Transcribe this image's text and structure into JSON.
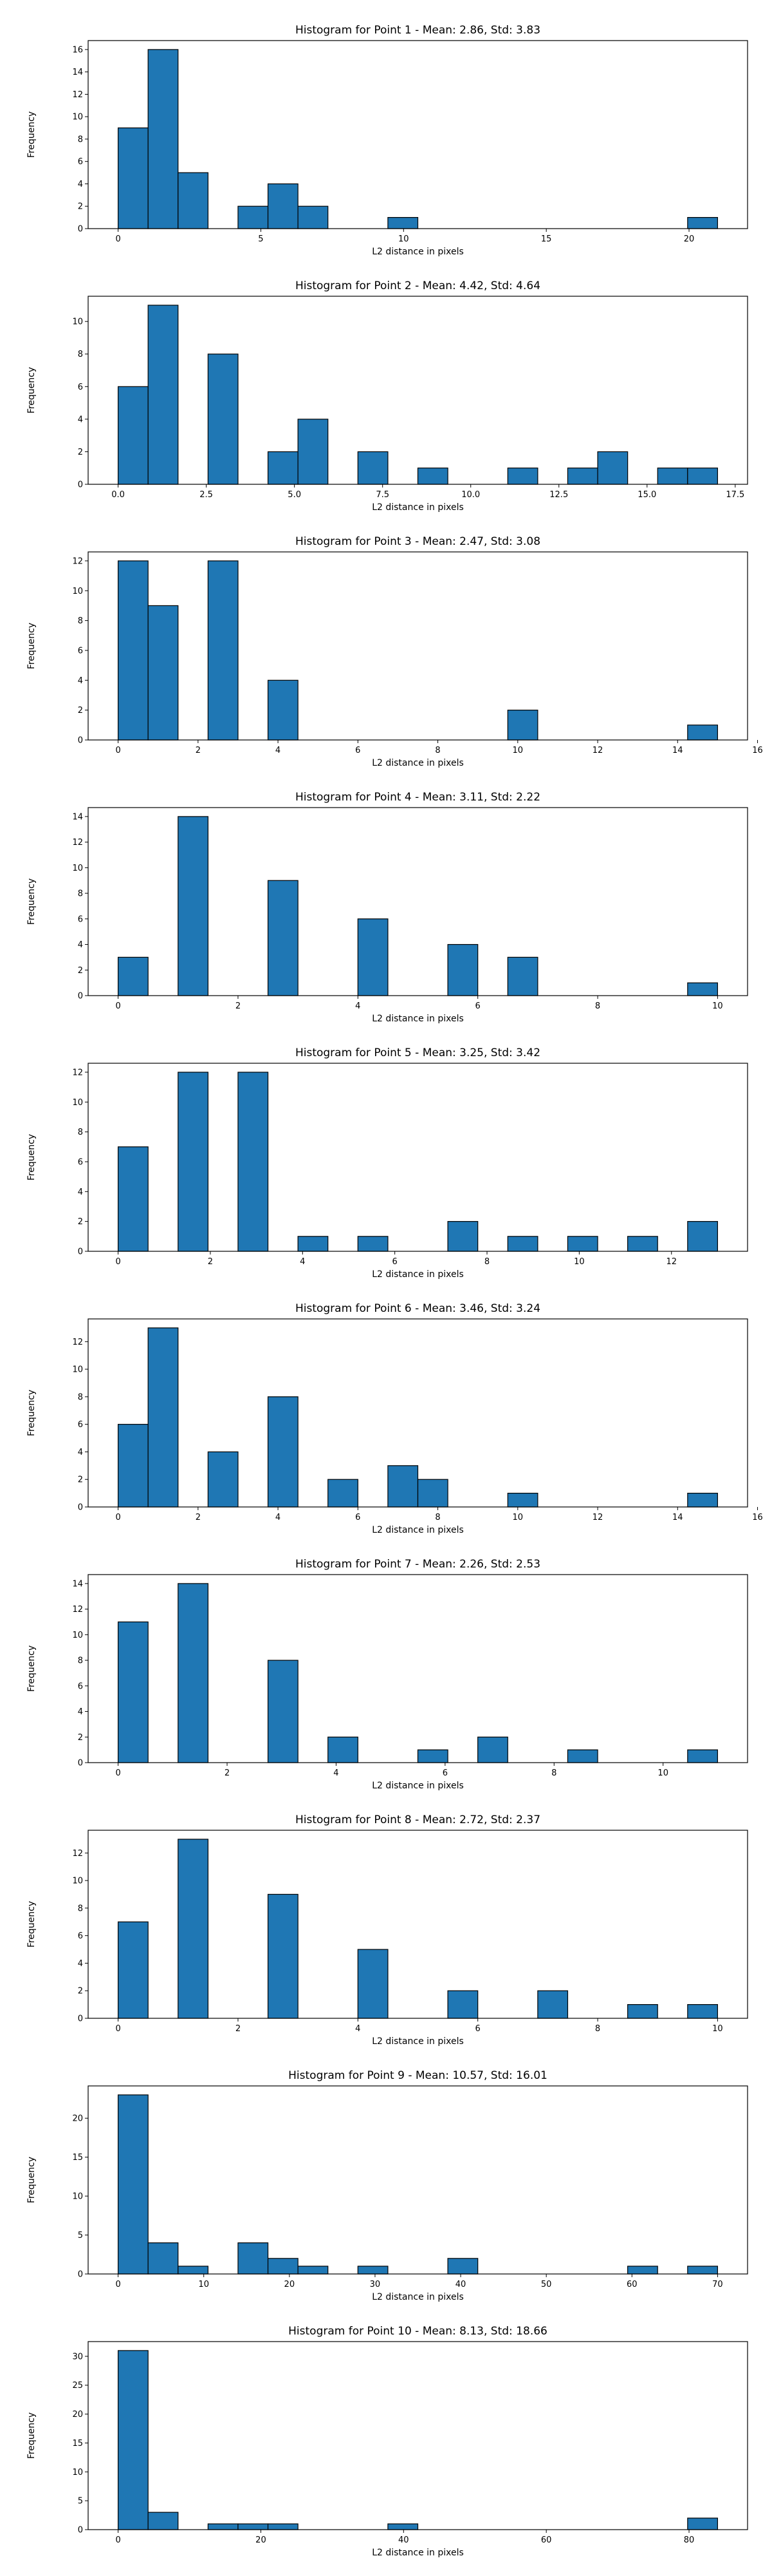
{
  "chart_data": [
    {
      "type": "bar",
      "title": "Histogram for Point 1 - Mean: 2.86, Std: 3.83",
      "xlabel": "L2 distance in pixels",
      "ylabel": "Frequency",
      "xlim": [
        -1.05,
        22.05
      ],
      "ylim": [
        0,
        16.8
      ],
      "xticks": [
        0,
        5,
        10,
        15,
        20
      ],
      "xtick_labels": [
        "0",
        "5",
        "10",
        "15",
        "20"
      ],
      "yticks": [
        0,
        2,
        4,
        6,
        8,
        10,
        12,
        14,
        16
      ],
      "bin_edges": [
        0.0,
        1.05,
        2.1,
        3.15,
        4.2,
        5.25,
        6.3,
        7.35,
        8.4,
        9.45,
        10.5,
        11.55,
        12.6,
        13.65,
        14.7,
        15.75,
        16.8,
        17.85,
        18.9,
        19.95,
        21.0
      ],
      "values": [
        9,
        16,
        5,
        0,
        2,
        4,
        2,
        0,
        0,
        1,
        0,
        0,
        0,
        0,
        0,
        0,
        0,
        0,
        0,
        1
      ],
      "bar_color": "#1f77b4",
      "edge_color": "#000000",
      "grid": false
    },
    {
      "type": "bar",
      "title": "Histogram for Point 2 - Mean: 4.42, Std: 4.64",
      "xlabel": "L2 distance in pixels",
      "ylabel": "Frequency",
      "xlim": [
        -0.85,
        17.85
      ],
      "ylim": [
        0,
        11.55
      ],
      "xticks": [
        0,
        2.5,
        5,
        7.5,
        10,
        12.5,
        15,
        17.5
      ],
      "xtick_labels": [
        "0.0",
        "2.5",
        "5.0",
        "7.5",
        "10.0",
        "12.5",
        "15.0",
        "17.5"
      ],
      "yticks": [
        0,
        2,
        4,
        6,
        8,
        10
      ],
      "bin_edges": [
        0.0,
        0.85,
        1.7,
        2.55,
        3.4,
        4.25,
        5.1,
        5.95,
        6.8,
        7.65,
        8.5,
        9.35,
        10.2,
        11.05,
        11.9,
        12.75,
        13.6,
        14.45,
        15.3,
        16.15,
        17.0
      ],
      "values": [
        6,
        11,
        0,
        8,
        0,
        2,
        4,
        0,
        2,
        0,
        1,
        0,
        0,
        1,
        0,
        1,
        2,
        0,
        1,
        1
      ],
      "bar_color": "#1f77b4",
      "edge_color": "#000000",
      "grid": false
    },
    {
      "type": "bar",
      "title": "Histogram for Point 3 - Mean: 2.47, Std: 3.08",
      "xlabel": "L2 distance in pixels",
      "ylabel": "Frequency",
      "xlim": [
        -0.75,
        15.75
      ],
      "ylim": [
        0,
        12.6
      ],
      "xticks": [
        0,
        2,
        4,
        6,
        8,
        10,
        12,
        14,
        16
      ],
      "xtick_labels": [
        "0",
        "2",
        "4",
        "6",
        "8",
        "10",
        "12",
        "14",
        "16"
      ],
      "yticks": [
        0,
        2,
        4,
        6,
        8,
        10,
        12
      ],
      "bin_edges": [
        0.0,
        0.75,
        1.5,
        2.25,
        3.0,
        3.75,
        4.5,
        5.25,
        6.0,
        6.75,
        7.5,
        8.25,
        9.0,
        9.75,
        10.5,
        11.25,
        12.0,
        12.75,
        13.5,
        14.25,
        15.0
      ],
      "values": [
        12,
        9,
        0,
        12,
        0,
        4,
        0,
        0,
        0,
        0,
        0,
        0,
        0,
        2,
        0,
        0,
        0,
        0,
        0,
        1
      ],
      "bar_color": "#1f77b4",
      "edge_color": "#000000",
      "grid": false
    },
    {
      "type": "bar",
      "title": "Histogram for Point 4 - Mean: 3.11, Std: 2.22",
      "xlabel": "L2 distance in pixels",
      "ylabel": "Frequency",
      "xlim": [
        -0.5,
        10.5
      ],
      "ylim": [
        0,
        14.7
      ],
      "xticks": [
        0,
        2,
        4,
        6,
        8,
        10
      ],
      "xtick_labels": [
        "0",
        "2",
        "4",
        "6",
        "8",
        "10"
      ],
      "yticks": [
        0,
        2,
        4,
        6,
        8,
        10,
        12,
        14
      ],
      "bin_edges": [
        0.0,
        0.5,
        1.0,
        1.5,
        2.0,
        2.5,
        3.0,
        3.5,
        4.0,
        4.5,
        5.0,
        5.5,
        6.0,
        6.5,
        7.0,
        7.5,
        8.0,
        8.5,
        9.0,
        9.5,
        10.0
      ],
      "values": [
        3,
        0,
        14,
        0,
        0,
        9,
        0,
        0,
        6,
        0,
        0,
        4,
        0,
        3,
        0,
        0,
        0,
        0,
        0,
        1
      ],
      "bar_color": "#1f77b4",
      "edge_color": "#000000",
      "grid": false
    },
    {
      "type": "bar",
      "title": "Histogram for Point 5 - Mean: 3.25, Std: 3.42",
      "xlabel": "L2 distance in pixels",
      "ylabel": "Frequency",
      "xlim": [
        -0.65,
        13.65
      ],
      "ylim": [
        0,
        12.6
      ],
      "xticks": [
        0,
        2,
        4,
        6,
        8,
        10,
        12
      ],
      "xtick_labels": [
        "0",
        "2",
        "4",
        "6",
        "8",
        "10",
        "12"
      ],
      "yticks": [
        0,
        2,
        4,
        6,
        8,
        10,
        12
      ],
      "bin_edges": [
        0.0,
        0.65,
        1.3,
        1.95,
        2.6,
        3.25,
        3.9,
        4.55,
        5.2,
        5.85,
        6.5,
        7.15,
        7.8,
        8.45,
        9.1,
        9.75,
        10.4,
        11.05,
        11.7,
        12.35,
        13.0
      ],
      "values": [
        7,
        0,
        12,
        0,
        12,
        0,
        1,
        0,
        1,
        0,
        0,
        2,
        0,
        1,
        0,
        1,
        0,
        1,
        0,
        2
      ],
      "bar_color": "#1f77b4",
      "edge_color": "#000000",
      "grid": false
    },
    {
      "type": "bar",
      "title": "Histogram for Point 6 - Mean: 3.46, Std: 3.24",
      "xlabel": "L2 distance in pixels",
      "ylabel": "Frequency",
      "xlim": [
        -0.75,
        15.75
      ],
      "ylim": [
        0,
        13.65
      ],
      "xticks": [
        0,
        2,
        4,
        6,
        8,
        10,
        12,
        14,
        16
      ],
      "xtick_labels": [
        "0",
        "2",
        "4",
        "6",
        "8",
        "10",
        "12",
        "14",
        "16"
      ],
      "yticks": [
        0,
        2,
        4,
        6,
        8,
        10,
        12
      ],
      "bin_edges": [
        0.0,
        0.75,
        1.5,
        2.25,
        3.0,
        3.75,
        4.5,
        5.25,
        6.0,
        6.75,
        7.5,
        8.25,
        9.0,
        9.75,
        10.5,
        11.25,
        12.0,
        12.75,
        13.5,
        14.25,
        15.0
      ],
      "values": [
        6,
        13,
        0,
        4,
        0,
        8,
        0,
        2,
        0,
        3,
        2,
        0,
        0,
        1,
        0,
        0,
        0,
        0,
        0,
        1
      ],
      "bar_color": "#1f77b4",
      "edge_color": "#000000",
      "grid": false
    },
    {
      "type": "bar",
      "title": "Histogram for Point 7 - Mean: 2.26, Std: 2.53",
      "xlabel": "L2 distance in pixels",
      "ylabel": "Frequency",
      "xlim": [
        -0.55,
        11.55
      ],
      "ylim": [
        0,
        14.7
      ],
      "xticks": [
        0,
        2,
        4,
        6,
        8,
        10
      ],
      "xtick_labels": [
        "0",
        "2",
        "4",
        "6",
        "8",
        "10"
      ],
      "yticks": [
        0,
        2,
        4,
        6,
        8,
        10,
        12,
        14
      ],
      "bin_edges": [
        0.0,
        0.55,
        1.1,
        1.65,
        2.2,
        2.75,
        3.3,
        3.85,
        4.4,
        4.95,
        5.5,
        6.05,
        6.6,
        7.15,
        7.7,
        8.25,
        8.8,
        9.35,
        9.9,
        10.45,
        11.0
      ],
      "values": [
        11,
        0,
        14,
        0,
        0,
        8,
        0,
        2,
        0,
        0,
        1,
        0,
        2,
        0,
        0,
        1,
        0,
        0,
        0,
        1
      ],
      "bar_color": "#1f77b4",
      "edge_color": "#000000",
      "grid": false
    },
    {
      "type": "bar",
      "title": "Histogram for Point 8 - Mean: 2.72, Std: 2.37",
      "xlabel": "L2 distance in pixels",
      "ylabel": "Frequency",
      "xlim": [
        -0.5,
        10.5
      ],
      "ylim": [
        0,
        13.65
      ],
      "xticks": [
        0,
        2,
        4,
        6,
        8,
        10
      ],
      "xtick_labels": [
        "0",
        "2",
        "4",
        "6",
        "8",
        "10"
      ],
      "yticks": [
        0,
        2,
        4,
        6,
        8,
        10,
        12
      ],
      "bin_edges": [
        0.0,
        0.5,
        1.0,
        1.5,
        2.0,
        2.5,
        3.0,
        3.5,
        4.0,
        4.5,
        5.0,
        5.5,
        6.0,
        6.5,
        7.0,
        7.5,
        8.0,
        8.5,
        9.0,
        9.5,
        10.0
      ],
      "values": [
        7,
        0,
        13,
        0,
        0,
        9,
        0,
        0,
        5,
        0,
        0,
        2,
        0,
        0,
        2,
        0,
        0,
        1,
        0,
        1
      ],
      "bar_color": "#1f77b4",
      "edge_color": "#000000",
      "grid": false
    },
    {
      "type": "bar",
      "title": "Histogram for Point 9 - Mean: 10.57, Std: 16.01",
      "xlabel": "L2 distance in pixels",
      "ylabel": "Frequency",
      "xlim": [
        -3.5,
        73.5
      ],
      "ylim": [
        0,
        24.15
      ],
      "xticks": [
        0,
        10,
        20,
        30,
        40,
        50,
        60,
        70
      ],
      "xtick_labels": [
        "0",
        "10",
        "20",
        "30",
        "40",
        "50",
        "60",
        "70"
      ],
      "yticks": [
        0,
        5,
        10,
        15,
        20
      ],
      "bin_edges": [
        0.0,
        3.5,
        7.0,
        10.5,
        14.0,
        17.5,
        21.0,
        24.5,
        28.0,
        31.5,
        35.0,
        38.5,
        42.0,
        45.5,
        49.0,
        52.5,
        56.0,
        59.5,
        63.0,
        66.5,
        70.0
      ],
      "values": [
        23,
        4,
        1,
        0,
        4,
        2,
        1,
        0,
        1,
        0,
        0,
        2,
        0,
        0,
        0,
        0,
        0,
        1,
        0,
        1
      ],
      "bar_color": "#1f77b4",
      "edge_color": "#000000",
      "grid": false
    },
    {
      "type": "bar",
      "title": "Histogram for Point 10 - Mean: 8.13, Std: 18.66",
      "xlabel": "L2 distance in pixels",
      "ylabel": "Frequency",
      "xlim": [
        -4.2,
        88.2
      ],
      "ylim": [
        0,
        32.55
      ],
      "xticks": [
        0,
        20,
        40,
        60,
        80
      ],
      "xtick_labels": [
        "0",
        "20",
        "40",
        "60",
        "80"
      ],
      "yticks": [
        0,
        5,
        10,
        15,
        20,
        25,
        30
      ],
      "bin_edges": [
        0.0,
        4.2,
        8.4,
        12.6,
        16.8,
        21.0,
        25.2,
        29.4,
        33.6,
        37.8,
        42.0,
        46.2,
        50.4,
        54.6,
        58.8,
        63.0,
        67.2,
        71.4,
        75.6,
        79.8,
        84.0
      ],
      "values": [
        31,
        3,
        0,
        1,
        1,
        1,
        0,
        0,
        0,
        1,
        0,
        0,
        0,
        0,
        0,
        0,
        0,
        0,
        0,
        2
      ],
      "bar_color": "#1f77b4",
      "edge_color": "#000000",
      "grid": false
    }
  ]
}
